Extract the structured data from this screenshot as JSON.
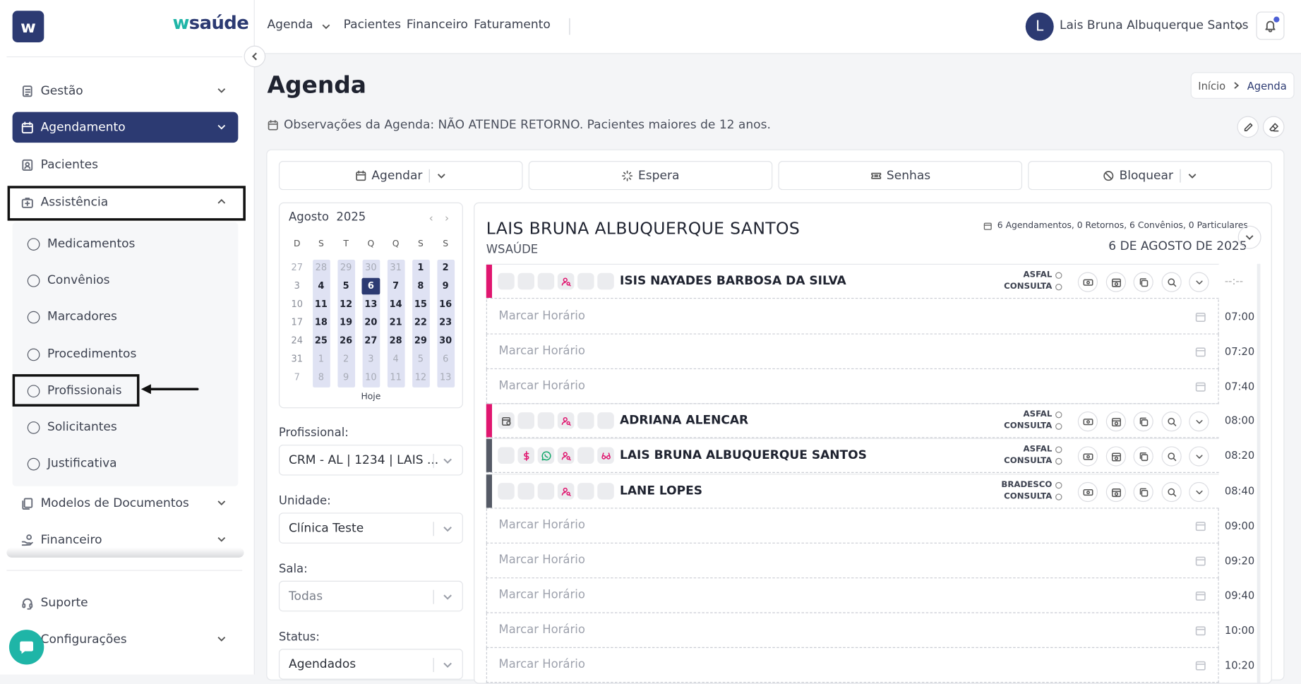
{
  "sidebar": {
    "logo_letter": "w",
    "brand": {
      "prefix": "w",
      "rest": "saúde"
    },
    "nav": {
      "gestao": "Gestão",
      "agendamento": "Agendamento",
      "pacientes": "Pacientes",
      "assistencia": "Assistência",
      "modelos": "Modelos de Documentos",
      "financeiro": "Financeiro",
      "suporte": "Suporte",
      "configuracoes": "Configurações"
    },
    "submenu": [
      "Medicamentos",
      "Convênios",
      "Marcadores",
      "Procedimentos",
      "Profissionais",
      "Solicitantes",
      "Justificativa"
    ]
  },
  "topbar": {
    "links": [
      "Agenda",
      "Pacientes",
      "Financeiro",
      "Faturamento"
    ],
    "user_initial": "L",
    "user_name": "Lais Bruna Albuquerque Santos"
  },
  "page": {
    "title": "Agenda",
    "breadcrumb": {
      "home": "Início",
      "current": "Agenda"
    },
    "observation": "Observações da Agenda: NÃO ATENDE RETORNO. Pacientes maiores de 12 anos."
  },
  "actions": {
    "agendar": "Agendar",
    "espera": "Espera",
    "senhas": "Senhas",
    "bloquear": "Bloquear"
  },
  "calendar": {
    "month": "Agosto",
    "year": "2025",
    "weekdays": [
      "D",
      "S",
      "T",
      "Q",
      "Q",
      "S",
      "S"
    ],
    "weeks": [
      [
        "27",
        "28",
        "29",
        "30",
        "31",
        "1",
        "2"
      ],
      [
        "3",
        "4",
        "5",
        "6",
        "7",
        "8",
        "9"
      ],
      [
        "10",
        "11",
        "12",
        "13",
        "14",
        "15",
        "16"
      ],
      [
        "17",
        "18",
        "19",
        "20",
        "21",
        "22",
        "23"
      ],
      [
        "24",
        "25",
        "26",
        "27",
        "28",
        "29",
        "30"
      ],
      [
        "31",
        "1",
        "2",
        "3",
        "4",
        "5",
        "6"
      ],
      [
        "7",
        "8",
        "9",
        "10",
        "11",
        "12",
        "13"
      ]
    ],
    "selected_day": "6",
    "today_label": "Hoje"
  },
  "filters": {
    "profissional_label": "Profissional:",
    "profissional_value": "CRM - AL | 1234 | LAIS ...",
    "unidade_label": "Unidade:",
    "unidade_value": "Clínica Teste",
    "sala_label": "Sala:",
    "sala_value": "Todas",
    "status_label": "Status:",
    "status_value": "Agendados"
  },
  "schedule": {
    "professional": "LAIS BRUNA ALBUQUERQUE SANTOS",
    "clinic": "WSAÚDE",
    "stats": "6 Agendamentos, 0 Retornos, 6 Convênios, 0 Particulares",
    "date": "6 DE AGOSTO DE 2025",
    "empty_label": "Marcar Horário",
    "colors": {
      "pink": "#e0166f",
      "gray": "#555a66"
    },
    "appointments": [
      {
        "name": "ISIS NAYADES BARBOSA DA SILVA",
        "insurance": "ASFAL",
        "type": "CONSULTA",
        "time": "--:--"
      },
      {
        "name": "ADRIANA ALENCAR",
        "insurance": "ASFAL",
        "type": "CONSULTA",
        "time": "08:00"
      },
      {
        "name": "LAIS BRUNA ALBUQUERQUE SANTOS",
        "insurance": "ASFAL",
        "type": "CONSULTA",
        "time": "08:20"
      },
      {
        "name": "LANE LOPES",
        "insurance": "BRADESCO",
        "type": "CONSULTA",
        "time": "08:40"
      }
    ],
    "empty_times": [
      "07:00",
      "07:20",
      "07:40",
      "09:00",
      "09:20",
      "09:40",
      "10:00",
      "10:20"
    ]
  }
}
